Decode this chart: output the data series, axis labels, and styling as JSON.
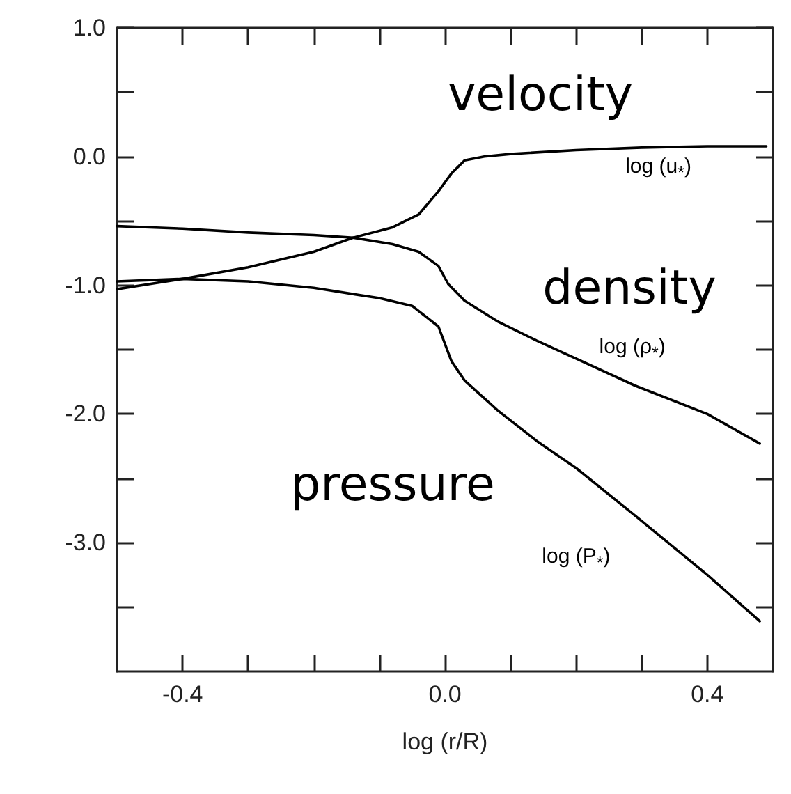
{
  "chart_data": {
    "type": "line",
    "xlabel": "log (r/R)",
    "xlim": [
      -0.5,
      0.5
    ],
    "xticks": [
      {
        "value": -0.4,
        "label": "-0.4"
      },
      {
        "value": -0.3,
        "label": null
      },
      {
        "value": -0.2,
        "label": null
      },
      {
        "value": -0.1,
        "label": null
      },
      {
        "value": 0,
        "label": "0.0"
      },
      {
        "value": 0.1,
        "label": null
      },
      {
        "value": 0.2,
        "label": null
      },
      {
        "value": 0.3,
        "label": null
      },
      {
        "value": 0.4,
        "label": "0.4"
      }
    ],
    "ylim": [
      -4,
      1
    ],
    "yticks": [
      {
        "value": -3.5,
        "label": null
      },
      {
        "value": -3,
        "label": "-3.0"
      },
      {
        "value": -2.5,
        "label": null
      },
      {
        "value": -2,
        "label": "-2.0"
      },
      {
        "value": -1.5,
        "label": null
      },
      {
        "value": -1,
        "label": "-1.0"
      },
      {
        "value": -0.5,
        "label": null
      },
      {
        "value": 0,
        "label": "0.0"
      },
      {
        "value": 0.5,
        "label": null
      },
      {
        "value": 1,
        "label": "1.0"
      }
    ],
    "grid": false,
    "legend": false,
    "marker": "none",
    "line_style": "solid",
    "series": [
      {
        "name": "log (u$_{*}$)",
        "color": "#000000",
        "x": [
          -0.5,
          -0.45,
          -0.4,
          -0.3,
          -0.2,
          -0.14,
          -0.08,
          -0.04,
          -0.01,
          0.01,
          0.03,
          0.06,
          0.1,
          0.2,
          0.3,
          0.4,
          0.49
        ],
        "values": [
          -1.03,
          -0.99,
          -0.95,
          -0.86,
          -0.74,
          -0.63,
          -0.55,
          -0.45,
          -0.27,
          -0.13,
          -0.03,
          0.0,
          0.02,
          0.05,
          0.07,
          0.08,
          0.08
        ]
      },
      {
        "name": "log (ρ$_{*}$)",
        "color": "#000000",
        "x": [
          -0.5,
          -0.4,
          -0.3,
          -0.2,
          -0.14,
          -0.08,
          -0.04,
          -0.01,
          0.005,
          0.03,
          0.08,
          0.14,
          0.2,
          0.29,
          0.4,
          0.48
        ],
        "values": [
          -0.54,
          -0.56,
          -0.59,
          -0.61,
          -0.63,
          -0.68,
          -0.74,
          -0.85,
          -0.99,
          -1.12,
          -1.28,
          -1.43,
          -1.57,
          -1.78,
          -2.0,
          -2.23
        ]
      },
      {
        "name": "log (P$_{*}$)",
        "color": "#000000",
        "x": [
          -0.5,
          -0.4,
          -0.3,
          -0.2,
          -0.1,
          -0.05,
          -0.01,
          0.01,
          0.03,
          0.08,
          0.14,
          0.2,
          0.29,
          0.4,
          0.48
        ],
        "values": [
          -0.97,
          -0.95,
          -0.97,
          -1.02,
          -1.1,
          -1.16,
          -1.32,
          -1.59,
          -1.74,
          -1.97,
          -2.21,
          -2.42,
          -2.79,
          -3.25,
          -3.61
        ]
      }
    ],
    "annotations": [
      "velocity",
      "density",
      "pressure"
    ]
  }
}
